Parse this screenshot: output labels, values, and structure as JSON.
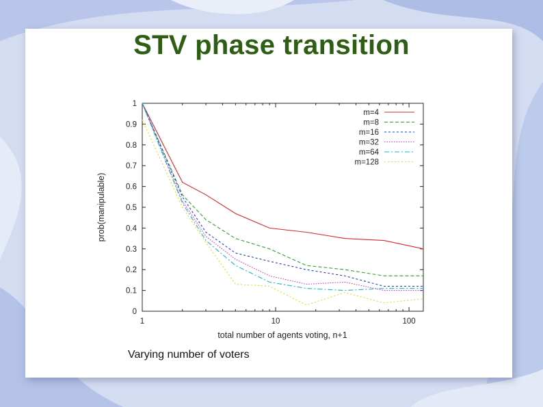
{
  "slide": {
    "title": "STV phase transition",
    "caption": "Varying number of voters"
  },
  "colors": {
    "title": "#2e5e14",
    "background": "#cfd8f0"
  },
  "chart_data": {
    "type": "line",
    "title": "",
    "xlabel": "total number of agents voting, n+1",
    "ylabel": "prob(manipulable)",
    "xscale": "log",
    "xlim": [
      1,
      128
    ],
    "ylim": [
      0,
      1
    ],
    "xticks": [
      {
        "value": 1,
        "label": "1"
      },
      {
        "value": 10,
        "label": "10"
      },
      {
        "value": 100,
        "label": "100"
      }
    ],
    "yticks": [
      {
        "value": 0,
        "label": "0"
      },
      {
        "value": 0.1,
        "label": "0.1"
      },
      {
        "value": 0.2,
        "label": "0.2"
      },
      {
        "value": 0.3,
        "label": "0.3"
      },
      {
        "value": 0.4,
        "label": "0.4"
      },
      {
        "value": 0.5,
        "label": "0.5"
      },
      {
        "value": 0.6,
        "label": "0.6"
      },
      {
        "value": 0.7,
        "label": "0.7"
      },
      {
        "value": 0.8,
        "label": "0.8"
      },
      {
        "value": 0.9,
        "label": "0.9"
      },
      {
        "value": 1,
        "label": "1"
      }
    ],
    "grid": false,
    "legend_position": "top-right",
    "x": [
      1,
      2,
      3,
      5,
      9,
      17,
      33,
      65,
      128
    ],
    "series": [
      {
        "name": "m=4",
        "color": "#d62728",
        "dash": "none",
        "values": [
          1.0,
          0.62,
          0.56,
          0.47,
          0.4,
          0.38,
          0.35,
          0.34,
          0.3
        ]
      },
      {
        "name": "m=8",
        "color": "#2ca02c",
        "dash": "5,3",
        "values": [
          1.0,
          0.56,
          0.44,
          0.35,
          0.3,
          0.22,
          0.2,
          0.17,
          0.17
        ]
      },
      {
        "name": "m=16",
        "color": "#1f3cc0",
        "dash": "3,3",
        "values": [
          1.0,
          0.55,
          0.38,
          0.28,
          0.24,
          0.2,
          0.17,
          0.12,
          0.12
        ]
      },
      {
        "name": "m=32",
        "color": "#d030c8",
        "dash": "1.5,2",
        "values": [
          1.0,
          0.53,
          0.36,
          0.25,
          0.17,
          0.13,
          0.14,
          0.1,
          0.1
        ]
      },
      {
        "name": "m=64",
        "color": "#19b5c9",
        "dash": "7,3,2,3",
        "values": [
          1.0,
          0.52,
          0.34,
          0.22,
          0.14,
          0.11,
          0.1,
          0.11,
          0.11
        ]
      },
      {
        "name": "m=128",
        "color": "#e8d818",
        "dash": "2,3",
        "values": [
          0.92,
          0.5,
          0.33,
          0.13,
          0.12,
          0.03,
          0.09,
          0.04,
          0.06
        ]
      }
    ]
  }
}
